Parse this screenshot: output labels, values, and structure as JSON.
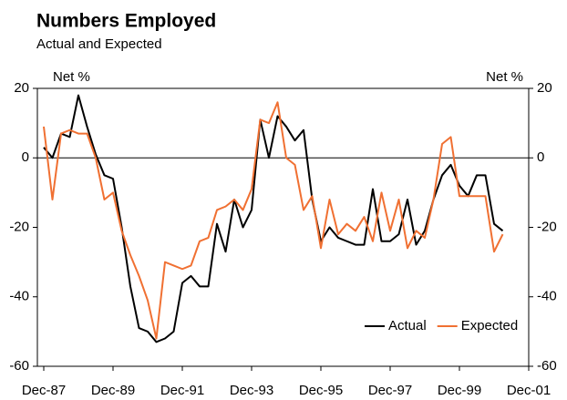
{
  "chart_data": {
    "type": "line",
    "title": "Numbers Employed",
    "subtitle": "Actual and Expected",
    "ylabel": "Net %",
    "y2label": "Net %",
    "categories": [
      "Dec-87",
      null,
      null,
      null,
      null,
      null,
      null,
      null,
      "Dec-89",
      null,
      null,
      null,
      null,
      null,
      null,
      null,
      "Dec-91",
      null,
      null,
      null,
      null,
      null,
      null,
      null,
      "Dec-93",
      null,
      null,
      null,
      null,
      null,
      null,
      null,
      "Dec-95",
      null,
      null,
      null,
      null,
      null,
      null,
      null,
      "Dec-97",
      null,
      null,
      null,
      null,
      null,
      null,
      null,
      "Dec-99",
      null,
      null,
      null,
      null,
      null,
      null,
      null,
      "Dec-01"
    ],
    "series": [
      {
        "name": "Actual",
        "color": "#000000",
        "values": [
          3,
          0,
          7,
          6,
          18,
          9,
          1,
          -5,
          -6,
          -20,
          -37,
          -49,
          -50,
          -53,
          -52,
          -50,
          -36,
          -34,
          -37,
          -37,
          -19,
          -27,
          -12,
          -20,
          -15,
          11,
          0,
          12,
          9,
          5,
          8,
          -12,
          -24,
          -20,
          -23,
          -24,
          -25,
          -25,
          -9,
          -24,
          -24,
          -22,
          -12,
          -25,
          -21,
          -12,
          -5,
          -2,
          -8,
          -11,
          -5,
          -5,
          -19,
          -21,
          null,
          null,
          null
        ]
      },
      {
        "name": "Expected",
        "color": "#f07032",
        "values": [
          9,
          -12,
          7,
          8,
          7,
          7,
          0,
          -12,
          -10,
          -21,
          -28,
          -34,
          -41,
          -52,
          -30,
          -31,
          -32,
          -31,
          -24,
          -23,
          -15,
          -14,
          -12,
          -15,
          -9,
          11,
          10,
          16,
          0,
          -2,
          -15,
          -11,
          -26,
          -12,
          -22,
          -19,
          -21,
          -17,
          -24,
          -10,
          -21,
          -12,
          -26,
          -21,
          -23,
          -12,
          4,
          6,
          -11,
          -11,
          -11,
          -11,
          -27,
          -22,
          null,
          null,
          null
        ]
      }
    ],
    "ylim": [
      -60,
      20
    ],
    "yticks": [
      -60,
      -40,
      -20,
      0,
      20
    ],
    "y2lim": [
      -60,
      20
    ],
    "y2ticks": [
      -60,
      -40,
      -20,
      0,
      20
    ],
    "legend": "lower right"
  }
}
